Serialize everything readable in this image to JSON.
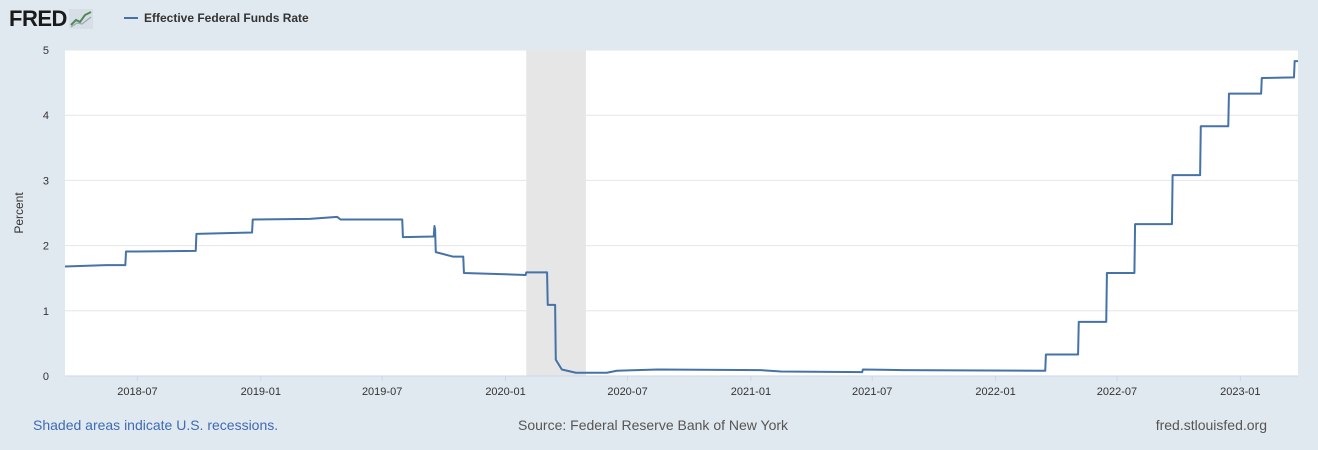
{
  "header": {
    "logo_text": "FRED",
    "legend_label": "Effective Federal Funds Rate"
  },
  "footer": {
    "recession_note": "Shaded areas indicate U.S. recessions.",
    "source": "Source: Federal Reserve Bank of New York",
    "site": "fred.stlouisfed.org"
  },
  "colors": {
    "line": "#4572a7",
    "recession": "#e6e6e6",
    "grid": "#e6e6e6",
    "background": "#e1e9f0",
    "plot_background": "#ffffff"
  },
  "chart_data": {
    "type": "line",
    "title": "Effective Federal Funds Rate",
    "xlabel": "",
    "ylabel": "Percent",
    "ylim": [
      0,
      5
    ],
    "y_ticks": [
      "0",
      "1",
      "2",
      "3",
      "4",
      "5"
    ],
    "x_ticks": [
      "2018-07",
      "2019-01",
      "2019-07",
      "2020-01",
      "2020-07",
      "2021-01",
      "2021-07",
      "2022-01",
      "2022-07",
      "2023-01"
    ],
    "x_tick_dates": [
      "2018-07-01",
      "2019-01-01",
      "2019-07-01",
      "2020-01-01",
      "2020-07-01",
      "2021-01-01",
      "2021-07-01",
      "2022-01-01",
      "2022-07-01",
      "2023-01-01"
    ],
    "xlim": [
      "2018-03-15",
      "2023-03-28"
    ],
    "recessions": [
      {
        "start": "2020-02-01",
        "end": "2020-04-30"
      }
    ],
    "series": [
      {
        "name": "Effective Federal Funds Rate",
        "points": [
          [
            "2018-03-15",
            1.68
          ],
          [
            "2018-05-15",
            1.7
          ],
          [
            "2018-06-13",
            1.7
          ],
          [
            "2018-06-14",
            1.91
          ],
          [
            "2018-07-01",
            1.91
          ],
          [
            "2018-09-26",
            1.92
          ],
          [
            "2018-09-27",
            2.18
          ],
          [
            "2018-12-19",
            2.2
          ],
          [
            "2018-12-20",
            2.4
          ],
          [
            "2019-03-15",
            2.41
          ],
          [
            "2019-04-25",
            2.44
          ],
          [
            "2019-04-30",
            2.4
          ],
          [
            "2019-07-31",
            2.4
          ],
          [
            "2019-08-01",
            2.13
          ],
          [
            "2019-09-16",
            2.14
          ],
          [
            "2019-09-17",
            2.3
          ],
          [
            "2019-09-18",
            2.25
          ],
          [
            "2019-09-19",
            1.9
          ],
          [
            "2019-10-15",
            1.83
          ],
          [
            "2019-10-30",
            1.83
          ],
          [
            "2019-10-31",
            1.58
          ],
          [
            "2020-01-31",
            1.55
          ],
          [
            "2020-02-01",
            1.59
          ],
          [
            "2020-03-03",
            1.59
          ],
          [
            "2020-03-04",
            1.09
          ],
          [
            "2020-03-15",
            1.09
          ],
          [
            "2020-03-16",
            0.25
          ],
          [
            "2020-03-25",
            0.1
          ],
          [
            "2020-04-15",
            0.05
          ],
          [
            "2020-05-31",
            0.05
          ],
          [
            "2020-06-15",
            0.08
          ],
          [
            "2020-07-15",
            0.09
          ],
          [
            "2020-08-15",
            0.1
          ],
          [
            "2021-01-15",
            0.09
          ],
          [
            "2021-02-15",
            0.07
          ],
          [
            "2021-06-16",
            0.06
          ],
          [
            "2021-06-17",
            0.1
          ],
          [
            "2021-08-15",
            0.09
          ],
          [
            "2022-03-16",
            0.08
          ],
          [
            "2022-03-17",
            0.33
          ],
          [
            "2022-05-04",
            0.33
          ],
          [
            "2022-05-05",
            0.83
          ],
          [
            "2022-06-15",
            0.83
          ],
          [
            "2022-06-16",
            1.58
          ],
          [
            "2022-07-27",
            1.58
          ],
          [
            "2022-07-28",
            2.33
          ],
          [
            "2022-09-21",
            2.33
          ],
          [
            "2022-09-22",
            3.08
          ],
          [
            "2022-11-02",
            3.08
          ],
          [
            "2022-11-03",
            3.83
          ],
          [
            "2022-12-14",
            3.83
          ],
          [
            "2022-12-15",
            4.33
          ],
          [
            "2023-02-01",
            4.33
          ],
          [
            "2023-02-02",
            4.57
          ],
          [
            "2023-03-22",
            4.58
          ],
          [
            "2023-03-23",
            4.83
          ],
          [
            "2023-03-28",
            4.83
          ]
        ]
      }
    ]
  }
}
